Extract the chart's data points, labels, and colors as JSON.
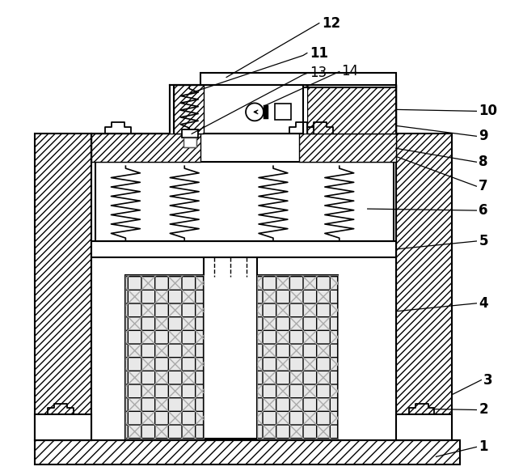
{
  "fig_width": 6.47,
  "fig_height": 5.87,
  "dpi": 100,
  "bg_color": "#ffffff"
}
